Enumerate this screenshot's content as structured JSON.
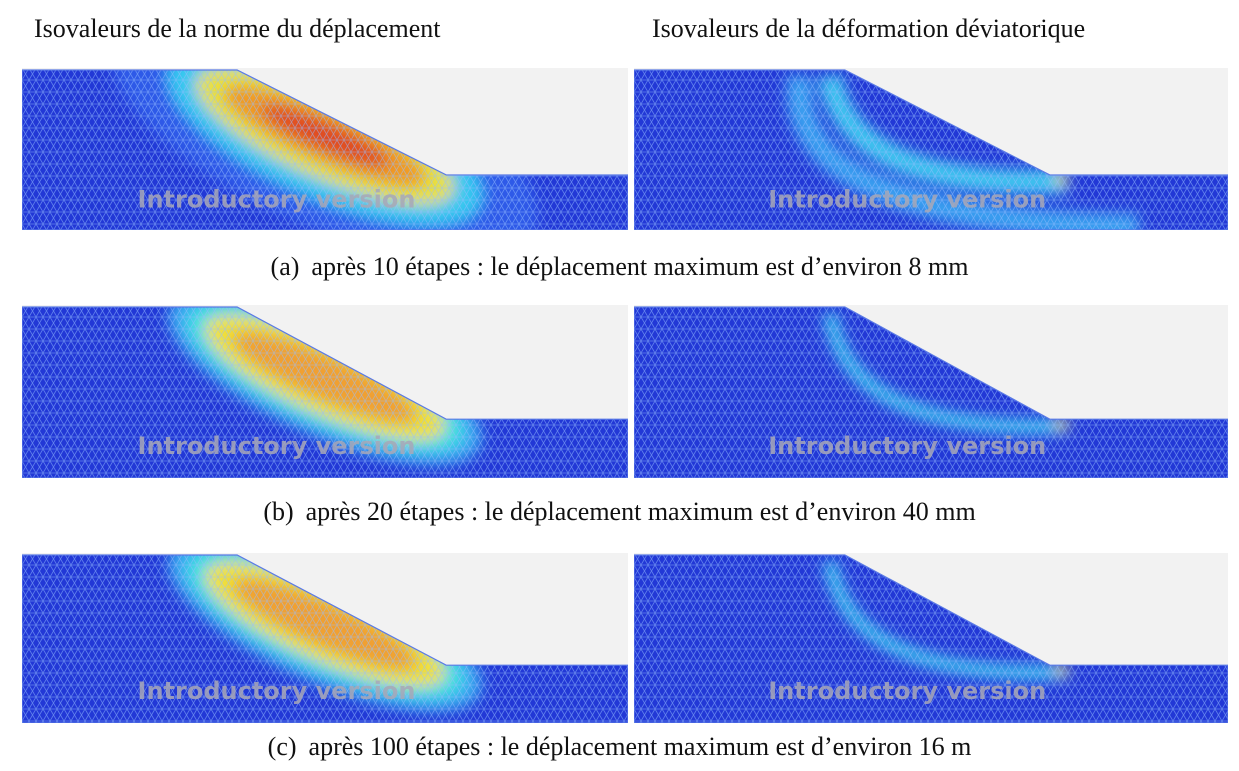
{
  "headers": [
    "Isovaleurs de la norme du déplacement",
    "Isovaleurs de la déformation déviatorique"
  ],
  "watermark": "Introductory version",
  "rows": [
    {
      "label": "(a)",
      "caption": "après 10 étapes : le déplacement maximum est d’environ 8 mm"
    },
    {
      "label": "(b)",
      "caption": "après 20 étapes : le déplacement maximum est d’environ 40 mm"
    },
    {
      "label": "(c)",
      "caption": "après 100 étapes : le déplacement maximum est d’environ 16 m"
    }
  ]
}
